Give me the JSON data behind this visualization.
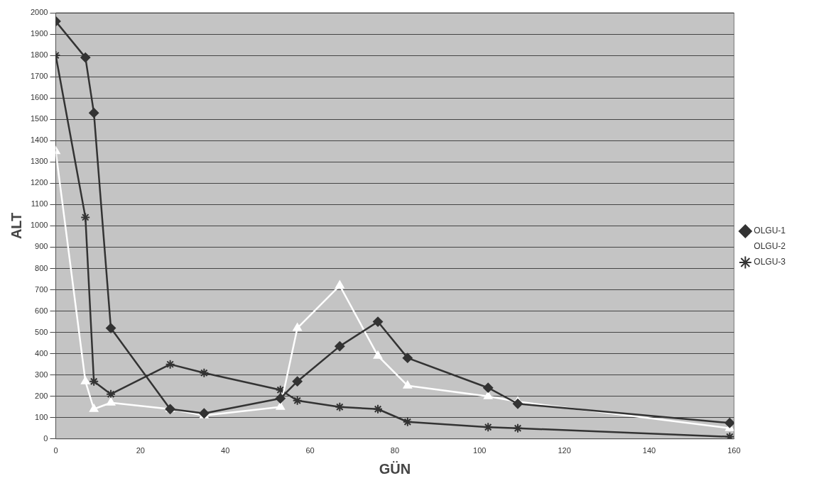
{
  "chart_data": {
    "type": "line",
    "xlabel": "GÜN",
    "ylabel": "ALT",
    "xlim": [
      0,
      160
    ],
    "xticks": [
      0,
      20,
      40,
      60,
      80,
      100,
      120,
      140,
      160
    ],
    "ylim": [
      0,
      2000
    ],
    "yticks": [
      0,
      100,
      200,
      300,
      400,
      500,
      600,
      700,
      800,
      900,
      1000,
      1100,
      1200,
      1300,
      1400,
      1500,
      1600,
      1700,
      1800,
      1900,
      2000
    ],
    "grid": "y",
    "legend": "right",
    "line_style": "solid",
    "series": [
      {
        "name": "OLGU-1",
        "color": "#333333",
        "marker": "diamond",
        "x": [
          0,
          7,
          9,
          13,
          27,
          35,
          53,
          57,
          67,
          76,
          83,
          102,
          109,
          159
        ],
        "values": [
          1960,
          1790,
          1530,
          520,
          140,
          120,
          190,
          270,
          435,
          550,
          380,
          240,
          165,
          75
        ]
      },
      {
        "name": "OLGU-2",
        "color": "#ffffff",
        "marker": "triangle",
        "x": [
          0,
          7,
          9,
          13,
          27,
          35,
          53,
          57,
          67,
          76,
          83,
          102,
          109,
          159
        ],
        "values": [
          1350,
          270,
          140,
          170,
          140,
          110,
          150,
          520,
          720,
          390,
          250,
          200,
          175,
          50
        ]
      },
      {
        "name": "OLGU-3",
        "color": "#333333",
        "marker": "cross",
        "x": [
          0,
          7,
          9,
          13,
          27,
          35,
          53,
          57,
          67,
          76,
          83,
          102,
          109,
          159
        ],
        "values": [
          1800,
          1040,
          270,
          210,
          350,
          310,
          230,
          180,
          150,
          140,
          80,
          55,
          50,
          10
        ]
      }
    ]
  }
}
